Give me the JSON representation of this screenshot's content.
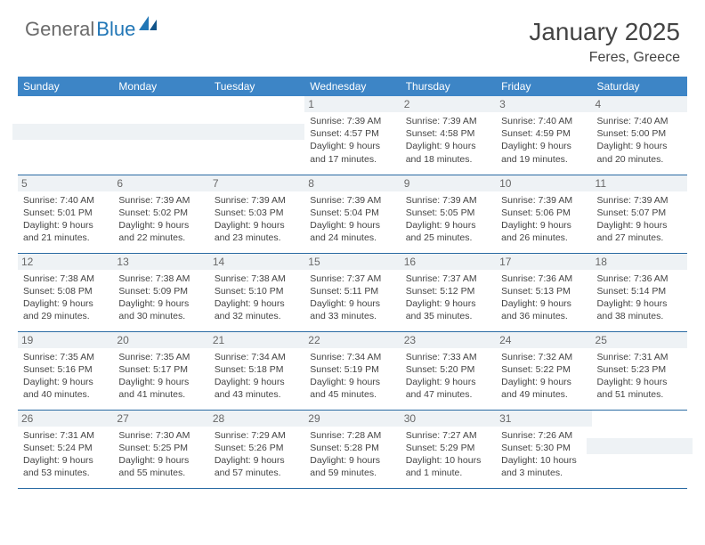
{
  "brand": {
    "part1": "General",
    "part2": "Blue"
  },
  "title": "January 2025",
  "location": "Feres, Greece",
  "colors": {
    "header_bg": "#3d85c6",
    "border": "#2a6ba3",
    "daynum_bg": "#eef2f5",
    "logo_blue": "#2176b6",
    "logo_gray": "#6b6b6b"
  },
  "dow": [
    "Sunday",
    "Monday",
    "Tuesday",
    "Wednesday",
    "Thursday",
    "Friday",
    "Saturday"
  ],
  "weeks": [
    [
      null,
      null,
      null,
      {
        "n": "1",
        "sr": "7:39 AM",
        "ss": "4:57 PM",
        "dl": "9 hours and 17 minutes."
      },
      {
        "n": "2",
        "sr": "7:39 AM",
        "ss": "4:58 PM",
        "dl": "9 hours and 18 minutes."
      },
      {
        "n": "3",
        "sr": "7:40 AM",
        "ss": "4:59 PM",
        "dl": "9 hours and 19 minutes."
      },
      {
        "n": "4",
        "sr": "7:40 AM",
        "ss": "5:00 PM",
        "dl": "9 hours and 20 minutes."
      }
    ],
    [
      {
        "n": "5",
        "sr": "7:40 AM",
        "ss": "5:01 PM",
        "dl": "9 hours and 21 minutes."
      },
      {
        "n": "6",
        "sr": "7:39 AM",
        "ss": "5:02 PM",
        "dl": "9 hours and 22 minutes."
      },
      {
        "n": "7",
        "sr": "7:39 AM",
        "ss": "5:03 PM",
        "dl": "9 hours and 23 minutes."
      },
      {
        "n": "8",
        "sr": "7:39 AM",
        "ss": "5:04 PM",
        "dl": "9 hours and 24 minutes."
      },
      {
        "n": "9",
        "sr": "7:39 AM",
        "ss": "5:05 PM",
        "dl": "9 hours and 25 minutes."
      },
      {
        "n": "10",
        "sr": "7:39 AM",
        "ss": "5:06 PM",
        "dl": "9 hours and 26 minutes."
      },
      {
        "n": "11",
        "sr": "7:39 AM",
        "ss": "5:07 PM",
        "dl": "9 hours and 27 minutes."
      }
    ],
    [
      {
        "n": "12",
        "sr": "7:38 AM",
        "ss": "5:08 PM",
        "dl": "9 hours and 29 minutes."
      },
      {
        "n": "13",
        "sr": "7:38 AM",
        "ss": "5:09 PM",
        "dl": "9 hours and 30 minutes."
      },
      {
        "n": "14",
        "sr": "7:38 AM",
        "ss": "5:10 PM",
        "dl": "9 hours and 32 minutes."
      },
      {
        "n": "15",
        "sr": "7:37 AM",
        "ss": "5:11 PM",
        "dl": "9 hours and 33 minutes."
      },
      {
        "n": "16",
        "sr": "7:37 AM",
        "ss": "5:12 PM",
        "dl": "9 hours and 35 minutes."
      },
      {
        "n": "17",
        "sr": "7:36 AM",
        "ss": "5:13 PM",
        "dl": "9 hours and 36 minutes."
      },
      {
        "n": "18",
        "sr": "7:36 AM",
        "ss": "5:14 PM",
        "dl": "9 hours and 38 minutes."
      }
    ],
    [
      {
        "n": "19",
        "sr": "7:35 AM",
        "ss": "5:16 PM",
        "dl": "9 hours and 40 minutes."
      },
      {
        "n": "20",
        "sr": "7:35 AM",
        "ss": "5:17 PM",
        "dl": "9 hours and 41 minutes."
      },
      {
        "n": "21",
        "sr": "7:34 AM",
        "ss": "5:18 PM",
        "dl": "9 hours and 43 minutes."
      },
      {
        "n": "22",
        "sr": "7:34 AM",
        "ss": "5:19 PM",
        "dl": "9 hours and 45 minutes."
      },
      {
        "n": "23",
        "sr": "7:33 AM",
        "ss": "5:20 PM",
        "dl": "9 hours and 47 minutes."
      },
      {
        "n": "24",
        "sr": "7:32 AM",
        "ss": "5:22 PM",
        "dl": "9 hours and 49 minutes."
      },
      {
        "n": "25",
        "sr": "7:31 AM",
        "ss": "5:23 PM",
        "dl": "9 hours and 51 minutes."
      }
    ],
    [
      {
        "n": "26",
        "sr": "7:31 AM",
        "ss": "5:24 PM",
        "dl": "9 hours and 53 minutes."
      },
      {
        "n": "27",
        "sr": "7:30 AM",
        "ss": "5:25 PM",
        "dl": "9 hours and 55 minutes."
      },
      {
        "n": "28",
        "sr": "7:29 AM",
        "ss": "5:26 PM",
        "dl": "9 hours and 57 minutes."
      },
      {
        "n": "29",
        "sr": "7:28 AM",
        "ss": "5:28 PM",
        "dl": "9 hours and 59 minutes."
      },
      {
        "n": "30",
        "sr": "7:27 AM",
        "ss": "5:29 PM",
        "dl": "10 hours and 1 minute."
      },
      {
        "n": "31",
        "sr": "7:26 AM",
        "ss": "5:30 PM",
        "dl": "10 hours and 3 minutes."
      },
      null
    ]
  ],
  "labels": {
    "sunrise": "Sunrise:",
    "sunset": "Sunset:",
    "daylight": "Daylight:"
  }
}
